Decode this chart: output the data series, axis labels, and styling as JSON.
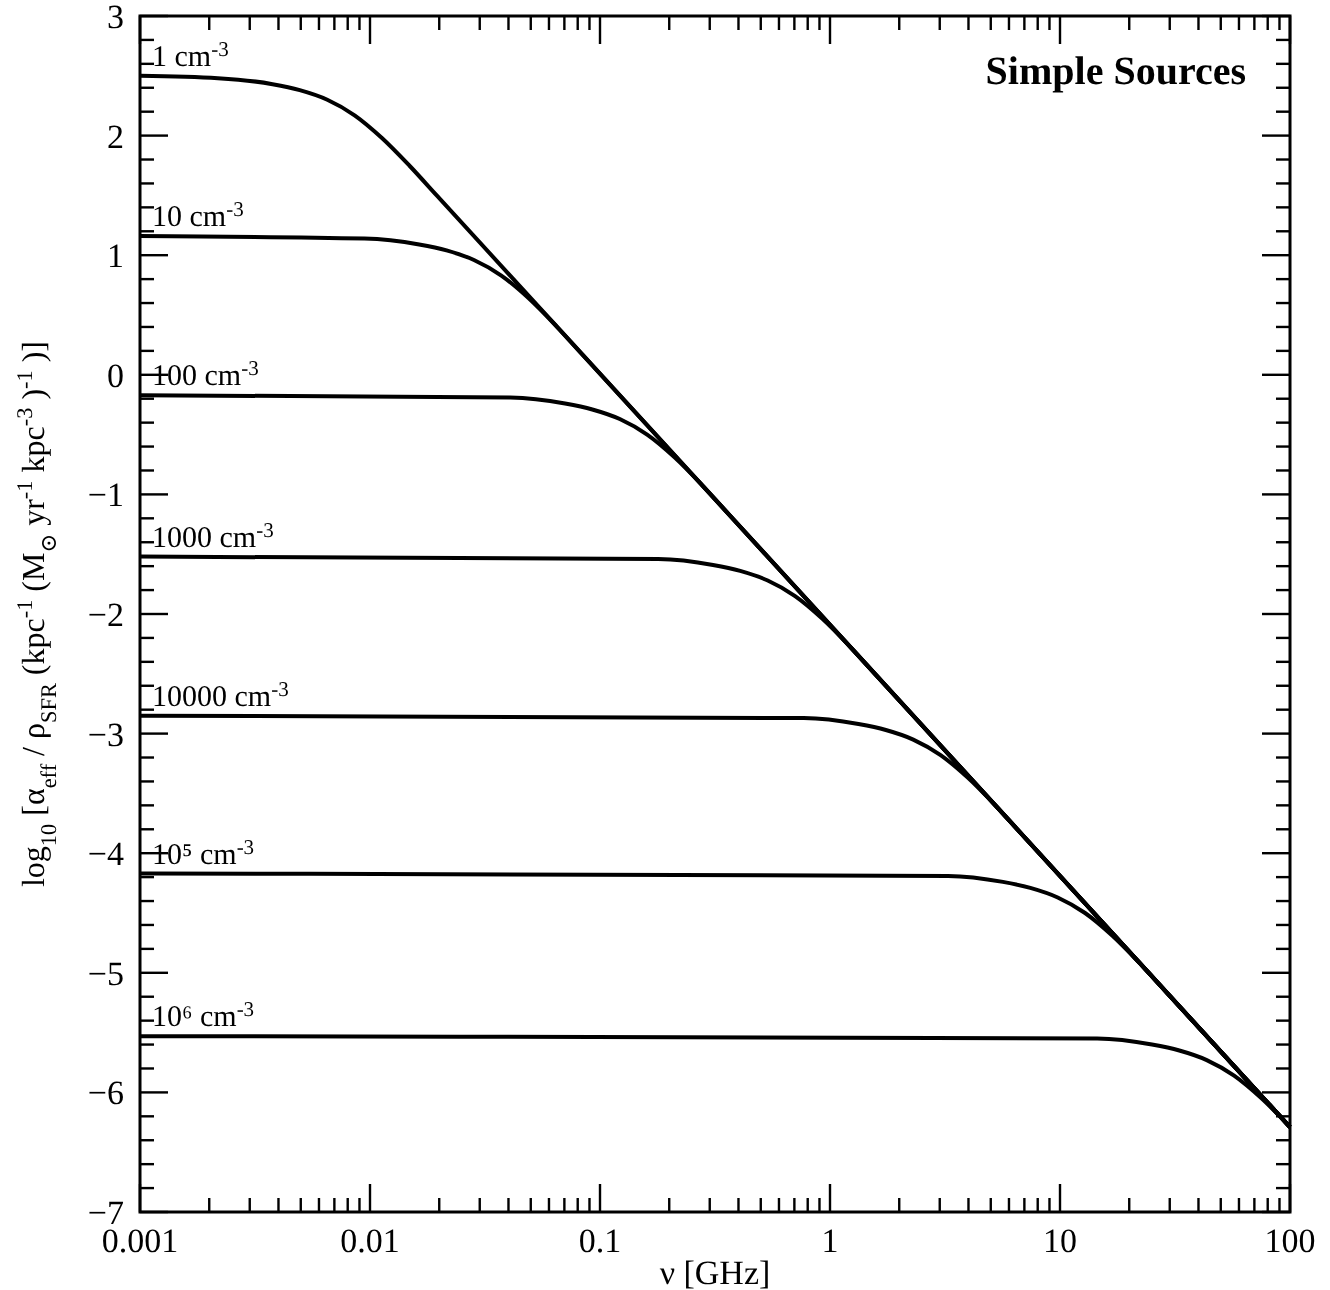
{
  "chart_data": {
    "type": "line",
    "title": "Simple Sources",
    "xlabel": "ν [GHz]",
    "ylabel": "log$_{10}$ [α$_{eff}$ / ρ$_{SFR}$ (kpc$^{-1}$ (M$_{⊙}$ yr$^{-1}$ kpc$^{-3}$)$^{-1}$)]",
    "log": "x",
    "xlim": [
      0.001,
      100
    ],
    "ylim": [
      -7,
      3
    ],
    "xticks": [
      0.001,
      {
        "value": 0.002,
        "label": null
      },
      {
        "value": 0.003,
        "label": null
      },
      {
        "value": 0.004,
        "label": null
      },
      {
        "value": 0.005,
        "label": null
      },
      {
        "value": 0.006,
        "label": null
      },
      {
        "value": 0.007,
        "label": null
      },
      {
        "value": 0.008,
        "label": null
      },
      {
        "value": 0.009,
        "label": null
      },
      0.01,
      {
        "value": 0.02,
        "label": null
      },
      {
        "value": 0.03,
        "label": null
      },
      {
        "value": 0.04,
        "label": null
      },
      {
        "value": 0.05,
        "label": null
      },
      {
        "value": 0.06,
        "label": null
      },
      {
        "value": 0.07,
        "label": null
      },
      {
        "value": 0.08,
        "label": null
      },
      {
        "value": 0.09,
        "label": null
      },
      0.1,
      {
        "value": 0.2,
        "label": null
      },
      {
        "value": 0.3,
        "label": null
      },
      {
        "value": 0.4,
        "label": null
      },
      {
        "value": 0.5,
        "label": null
      },
      {
        "value": 0.6,
        "label": null
      },
      {
        "value": 0.7,
        "label": null
      },
      {
        "value": 0.8,
        "label": null
      },
      {
        "value": 0.9,
        "label": null
      },
      1,
      {
        "value": 2,
        "label": null
      },
      {
        "value": 3,
        "label": null
      },
      {
        "value": 4,
        "label": null
      },
      {
        "value": 5,
        "label": null
      },
      {
        "value": 6,
        "label": null
      },
      {
        "value": 7,
        "label": null
      },
      {
        "value": 8,
        "label": null
      },
      {
        "value": 9,
        "label": null
      },
      10,
      {
        "value": 20,
        "label": null
      },
      {
        "value": 30,
        "label": null
      },
      {
        "value": 40,
        "label": null
      },
      {
        "value": 50,
        "label": null
      },
      {
        "value": 60,
        "label": null
      },
      {
        "value": 70,
        "label": null
      },
      {
        "value": 80,
        "label": null
      },
      {
        "value": 90,
        "label": null
      },
      100
    ],
    "yticks": [
      -7,
      {
        "value": -6.8,
        "label": null
      },
      {
        "value": -6.6,
        "label": null
      },
      {
        "value": -6.4,
        "label": null
      },
      {
        "value": -6.2,
        "label": null
      },
      -6,
      {
        "value": -5.8,
        "label": null
      },
      {
        "value": -5.6,
        "label": null
      },
      {
        "value": -5.4,
        "label": null
      },
      {
        "value": -5.2,
        "label": null
      },
      -5,
      {
        "value": -4.8,
        "label": null
      },
      {
        "value": -4.6,
        "label": null
      },
      {
        "value": -4.4,
        "label": null
      },
      {
        "value": -4.2,
        "label": null
      },
      -4,
      {
        "value": -3.8,
        "label": null
      },
      {
        "value": -3.6,
        "label": null
      },
      {
        "value": -3.4,
        "label": null
      },
      {
        "value": -3.2,
        "label": null
      },
      -3,
      {
        "value": -2.8,
        "label": null
      },
      {
        "value": -2.6,
        "label": null
      },
      {
        "value": -2.4,
        "label": null
      },
      {
        "value": -2.2,
        "label": null
      },
      -2,
      {
        "value": -1.8,
        "label": null
      },
      {
        "value": -1.6,
        "label": null
      },
      {
        "value": -1.4,
        "label": null
      },
      {
        "value": -1.2,
        "label": null
      },
      -1,
      {
        "value": -0.8,
        "label": null
      },
      {
        "value": -0.6,
        "label": null
      },
      {
        "value": -0.4,
        "label": null
      },
      {
        "value": -0.2,
        "label": null
      },
      0,
      {
        "value": 0.2,
        "label": null
      },
      {
        "value": 0.4,
        "label": null
      },
      {
        "value": 0.6,
        "label": null
      },
      {
        "value": 0.8,
        "label": null
      },
      1,
      {
        "value": 1.2,
        "label": null
      },
      {
        "value": 1.4,
        "label": null
      },
      {
        "value": 1.6,
        "label": null
      },
      {
        "value": 1.8,
        "label": null
      },
      2,
      {
        "value": 2.2,
        "label": null
      },
      {
        "value": 2.4,
        "label": null
      },
      {
        "value": 2.6,
        "label": null
      },
      {
        "value": 2.8,
        "label": null
      },
      3
    ],
    "series": [
      {
        "name": "1 cm$^{-3}$",
        "color": "#000000",
        "x": [
          0.001,
          0.00218,
          0.00377,
          0.00495,
          0.00652,
          0.00857,
          0.01127,
          0.01482,
          0.0195,
          100
        ],
        "values": [
          2.5,
          2.48,
          2.43,
          2.38,
          2.3,
          2.17,
          1.98,
          1.75,
          1.5,
          -6.29
        ]
      },
      {
        "name": "10 cm$^{-3}$",
        "color": "#000000",
        "x": [
          0.001,
          0.00946,
          0.01636,
          0.02152,
          0.02831,
          0.03723,
          0.04898,
          0.0644,
          0.0847,
          100
        ],
        "values": [
          1.16,
          1.14,
          1.09,
          1.04,
          0.96,
          0.83,
          0.64,
          0.41,
          0.16,
          -6.29
        ]
      },
      {
        "name": "100 cm$^{-3}$",
        "color": "#000000",
        "x": [
          0.001,
          0.0407,
          0.0705,
          0.0926,
          0.1219,
          0.1603,
          0.2109,
          0.2773,
          0.3647,
          100
        ],
        "values": [
          -0.17,
          -0.19,
          -0.24,
          -0.29,
          -0.37,
          -0.5,
          -0.69,
          -0.92,
          -1.17,
          -6.29
        ]
      },
      {
        "name": "1000 cm$^{-3}$",
        "color": "#000000",
        "x": [
          0.001,
          0.179,
          0.31,
          0.407,
          0.536,
          0.705,
          0.927,
          1.219,
          1.603,
          100
        ],
        "values": [
          -1.52,
          -1.54,
          -1.59,
          -1.64,
          -1.72,
          -1.85,
          -2.04,
          -2.27,
          -2.52,
          -6.29
        ]
      },
      {
        "name": "10000 cm$^{-3}$",
        "color": "#000000",
        "x": [
          0.001,
          0.769,
          1.33,
          1.749,
          2.301,
          3.026,
          3.981,
          5.235,
          6.885,
          100
        ],
        "values": [
          -2.85,
          -2.87,
          -2.92,
          -2.97,
          -3.05,
          -3.18,
          -3.37,
          -3.6,
          -3.85,
          -6.29
        ]
      },
      {
        "name": "10⁵ cm$^{-3}$",
        "color": "#000000",
        "x": [
          0.001,
          3.264,
          5.648,
          7.427,
          9.772,
          12.85,
          16.91,
          22.23,
          29.24,
          100
        ],
        "values": [
          -4.17,
          -4.19,
          -4.24,
          -4.29,
          -4.37,
          -4.5,
          -4.69,
          -4.92,
          -5.17,
          -6.29
        ]
      },
      {
        "name": "10⁶ cm$^{-3}$",
        "color": "#000000",
        "x": [
          0.001,
          14.51,
          25.11,
          33.02,
          43.45,
          57.14,
          75.17,
          100
        ],
        "values": [
          -5.53,
          -5.55,
          -5.6,
          -5.65,
          -5.73,
          -5.86,
          -6.05,
          -6.29
        ]
      }
    ]
  }
}
